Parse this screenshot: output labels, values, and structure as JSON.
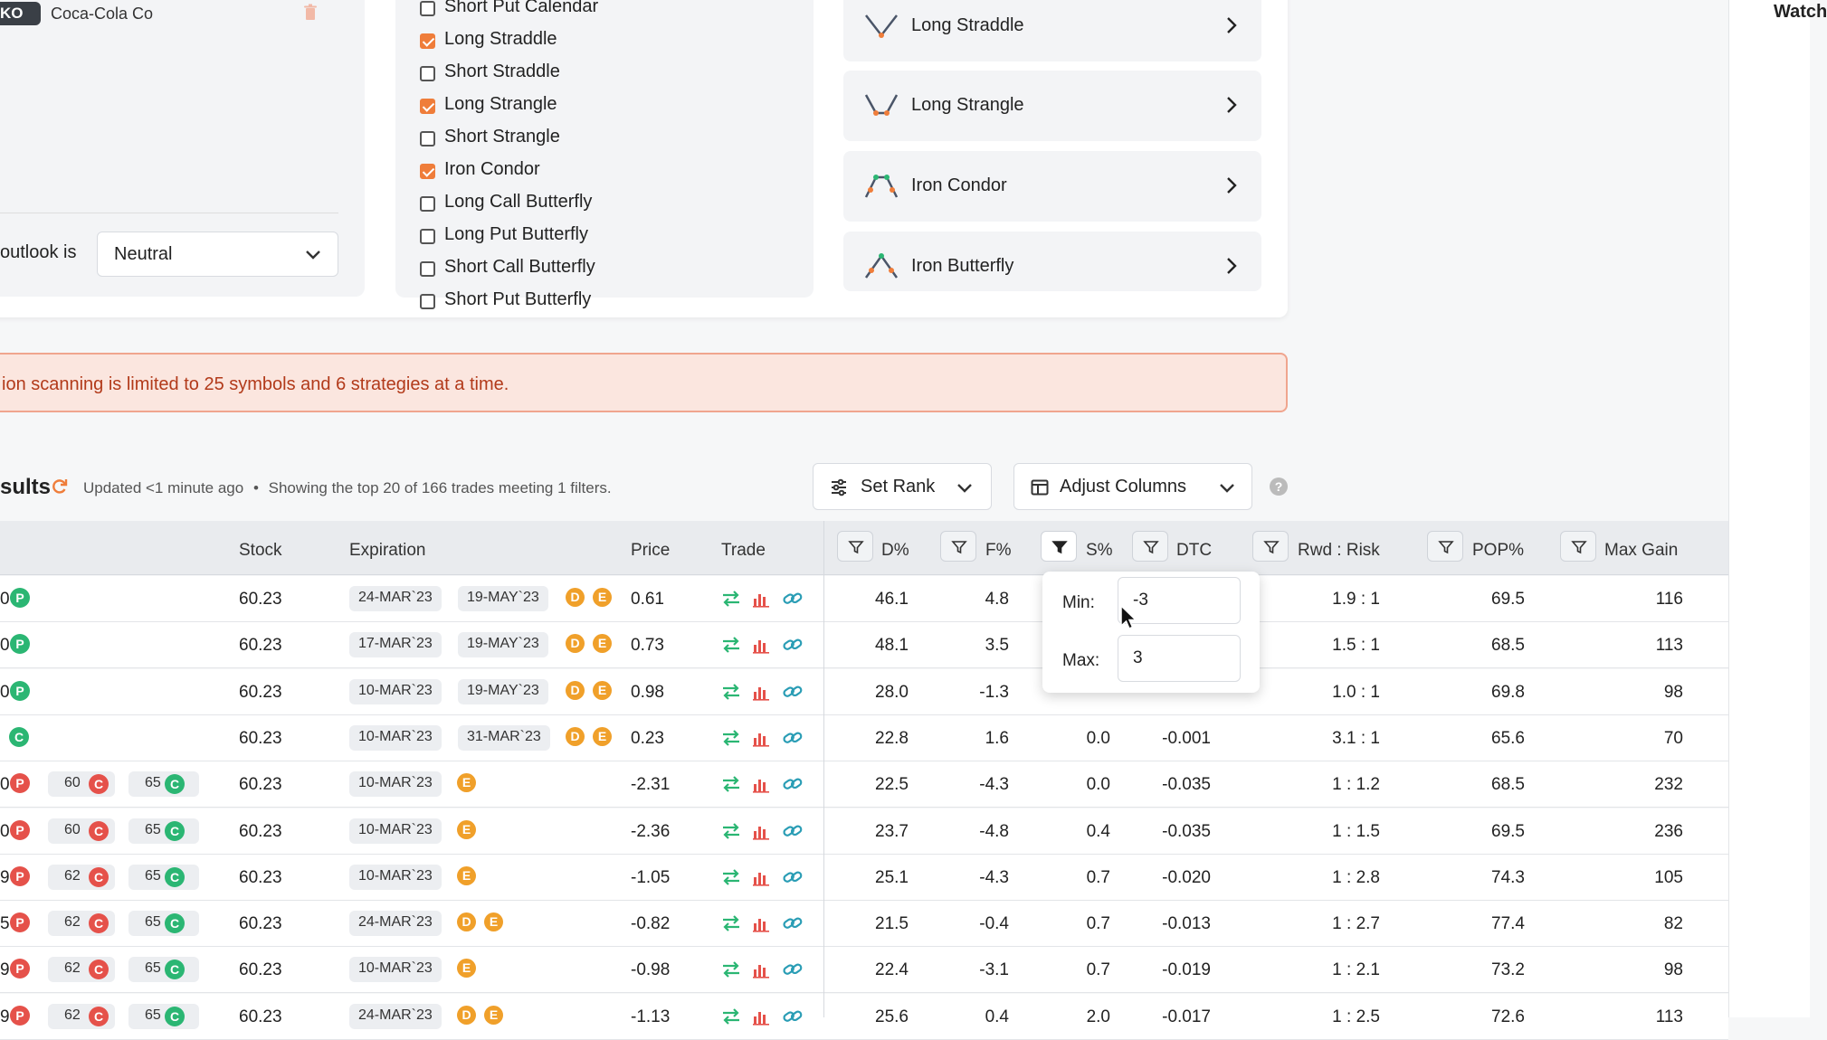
{
  "symbols": {
    "ticker": "KO",
    "name": "Coca-Cola Co"
  },
  "outlook": {
    "label": "outlook is",
    "value": "Neutral"
  },
  "strategy_list": [
    {
      "label": "Short Put Calendar",
      "checked": false
    },
    {
      "label": "Long Straddle",
      "checked": true
    },
    {
      "label": "Short Straddle",
      "checked": false
    },
    {
      "label": "Long Strangle",
      "checked": true
    },
    {
      "label": "Short Strangle",
      "checked": false
    },
    {
      "label": "Iron Condor",
      "checked": true
    },
    {
      "label": "Long Call Butterfly",
      "checked": false
    },
    {
      "label": "Long Put Butterfly",
      "checked": false
    },
    {
      "label": "Short Call Butterfly",
      "checked": false
    },
    {
      "label": "Short Put Butterfly",
      "checked": false
    }
  ],
  "selected_strategies": [
    "Long Straddle",
    "Long Strangle",
    "Iron Condor",
    "Iron Butterfly"
  ],
  "watch_label": "Watch",
  "banner": "ion scanning is limited to 25 symbols and 6 strategies at a time.",
  "results": {
    "title": "sults",
    "updated": "Updated <1 minute ago",
    "bullet": "•",
    "showing": "Showing the top 20 of 166 trades meeting 1 filters.",
    "set_rank": "Set Rank",
    "adjust_columns": "Adjust Columns",
    "help": "?"
  },
  "columns": [
    "Stock",
    "Expiration",
    "Price",
    "Trade",
    "D%",
    "F%",
    "S%",
    "DTC",
    "Rwd : Risk",
    "POP%",
    "Max Gain"
  ],
  "filter_popup": {
    "min_label": "Min:",
    "min_value": "-3",
    "max_label": "Max:",
    "max_value": "3"
  },
  "rows": [
    {
      "lead": "0",
      "lead_letter": "P",
      "strikes": [],
      "stock": "60.23",
      "exp1": "24-MAR`23",
      "exp2": "19-MAY`23",
      "flags": [
        "D",
        "E"
      ],
      "price": "0.61",
      "d": "46.1",
      "f": "4.8",
      "s": "",
      "dtc": "",
      "rr": "1.9 : 1",
      "pop": "69.5",
      "max_gain": "116"
    },
    {
      "lead": "0",
      "lead_letter": "P",
      "strikes": [],
      "stock": "60.23",
      "exp1": "17-MAR`23",
      "exp2": "19-MAY`23",
      "flags": [
        "D",
        "E"
      ],
      "price": "0.73",
      "d": "48.1",
      "f": "3.5",
      "s": "",
      "dtc": "",
      "rr": "1.5 : 1",
      "pop": "68.5",
      "max_gain": "113"
    },
    {
      "lead": "0",
      "lead_letter": "P",
      "strikes": [],
      "stock": "60.23",
      "exp1": "10-MAR`23",
      "exp2": "19-MAY`23",
      "flags": [
        "D",
        "E"
      ],
      "price": "0.98",
      "d": "28.0",
      "f": "-1.3",
      "s": "",
      "dtc": "",
      "rr": "1.0 : 1",
      "pop": "69.8",
      "max_gain": "98"
    },
    {
      "lead": "",
      "lead_letter": "C",
      "strikes": [],
      "stock": "60.23",
      "exp1": "10-MAR`23",
      "exp2": "31-MAR`23",
      "flags": [
        "D",
        "E"
      ],
      "price": "0.23",
      "d": "22.8",
      "f": "1.6",
      "s": "0.0",
      "dtc": "-0.001",
      "rr": "3.1 : 1",
      "pop": "65.6",
      "max_gain": "70"
    },
    {
      "lead": "0",
      "lead_letter": "P",
      "strikes": [
        {
          "v": "60",
          "t": "C"
        },
        {
          "v": "65",
          "t": "C"
        }
      ],
      "stock": "60.23",
      "exp1": "10-MAR`23",
      "exp2": "",
      "flags": [
        "E"
      ],
      "price": "-2.31",
      "d": "22.5",
      "f": "-4.3",
      "s": "0.0",
      "dtc": "-0.035",
      "rr": "1 : 1.2",
      "pop": "68.5",
      "max_gain": "232"
    },
    {
      "lead": "0",
      "lead_letter": "P",
      "strikes": [
        {
          "v": "60",
          "t": "C"
        },
        {
          "v": "65",
          "t": "C"
        }
      ],
      "stock": "60.23",
      "exp1": "10-MAR`23",
      "exp2": "",
      "flags": [
        "E"
      ],
      "price": "-2.36",
      "d": "23.7",
      "f": "-4.8",
      "s": "0.4",
      "dtc": "-0.035",
      "rr": "1 : 1.5",
      "pop": "69.5",
      "max_gain": "236"
    },
    {
      "lead": "9",
      "lead_letter": "P",
      "strikes": [
        {
          "v": "62",
          "t": "C"
        },
        {
          "v": "65",
          "t": "C"
        }
      ],
      "stock": "60.23",
      "exp1": "10-MAR`23",
      "exp2": "",
      "flags": [
        "E"
      ],
      "price": "-1.05",
      "d": "25.1",
      "f": "-4.3",
      "s": "0.7",
      "dtc": "-0.020",
      "rr": "1 : 2.8",
      "pop": "74.3",
      "max_gain": "105"
    },
    {
      "lead": "5",
      "lead_letter": "P",
      "strikes": [
        {
          "v": "62",
          "t": "C"
        },
        {
          "v": "65",
          "t": "C"
        }
      ],
      "stock": "60.23",
      "exp1": "24-MAR`23",
      "exp2": "",
      "flags": [
        "D",
        "E"
      ],
      "price": "-0.82",
      "d": "21.5",
      "f": "-0.4",
      "s": "0.7",
      "dtc": "-0.013",
      "rr": "1 : 2.7",
      "pop": "77.4",
      "max_gain": "82"
    },
    {
      "lead": "9",
      "lead_letter": "P",
      "strikes": [
        {
          "v": "62",
          "t": "C"
        },
        {
          "v": "65",
          "t": "C"
        }
      ],
      "stock": "60.23",
      "exp1": "10-MAR`23",
      "exp2": "",
      "flags": [
        "E"
      ],
      "price": "-0.98",
      "d": "22.4",
      "f": "-3.1",
      "s": "0.7",
      "dtc": "-0.019",
      "rr": "1 : 2.1",
      "pop": "73.2",
      "max_gain": "98"
    },
    {
      "lead": "9",
      "lead_letter": "P",
      "strikes": [
        {
          "v": "62",
          "t": "C"
        },
        {
          "v": "65",
          "t": "C"
        }
      ],
      "stock": "60.23",
      "exp1": "24-MAR`23",
      "exp2": "",
      "flags": [
        "D",
        "E"
      ],
      "price": "-1.13",
      "d": "25.6",
      "f": "0.4",
      "s": "2.0",
      "dtc": "-0.017",
      "rr": "1 : 2.5",
      "pop": "72.6",
      "max_gain": "113"
    }
  ],
  "colors": {
    "accent_orange": "#ef7d3a",
    "green": "#2bb673",
    "red": "#e5514a",
    "amber": "#f0a02a"
  }
}
